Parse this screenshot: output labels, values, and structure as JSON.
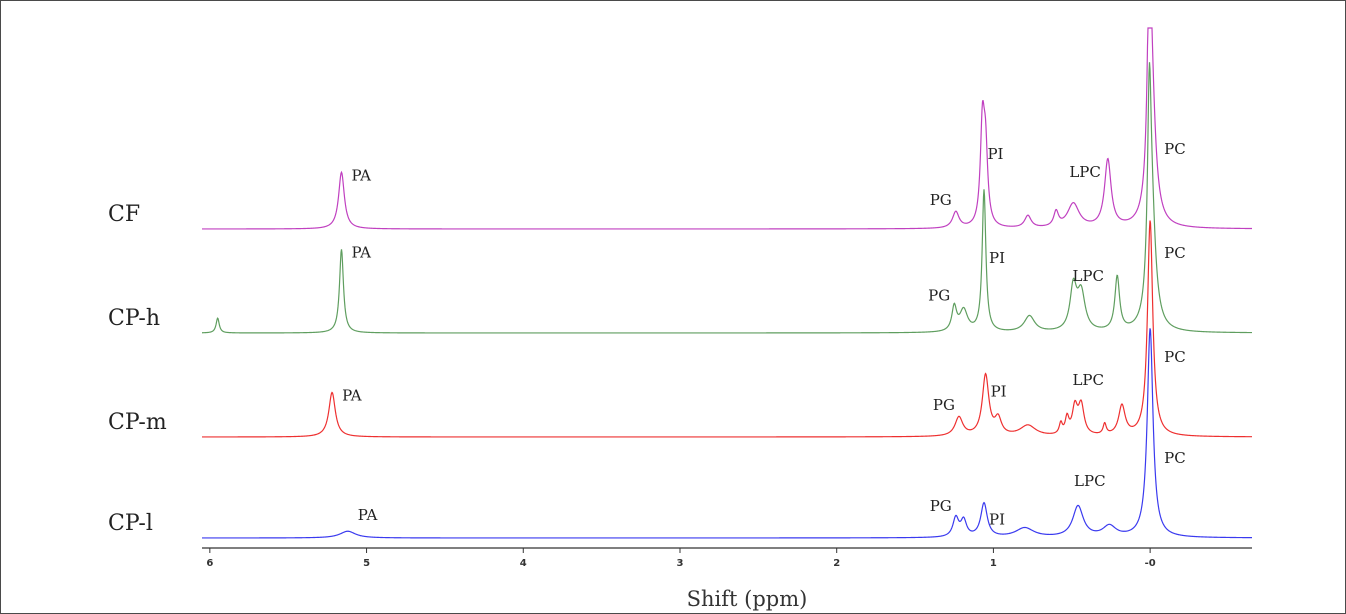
{
  "chart_data": {
    "type": "line",
    "title": "",
    "xlabel": "Shift (ppm)",
    "ylabel": "",
    "xlim": [
      6.05,
      -0.65
    ],
    "x_reversed": true,
    "xticks": [
      {
        "value": 6,
        "label": "6"
      },
      {
        "value": 5,
        "label": "5"
      },
      {
        "value": 4,
        "label": "4"
      },
      {
        "value": 3,
        "label": "3"
      },
      {
        "value": 2,
        "label": "2"
      },
      {
        "value": 1,
        "label": "1"
      },
      {
        "value": 0,
        "label": "-0"
      }
    ],
    "grid": false,
    "series": [
      {
        "name": "CF",
        "color": "#c040c0",
        "peaks": [
          {
            "x": 5.16,
            "height": 0.42,
            "width": 0.022
          },
          {
            "x": 1.24,
            "height": 0.12,
            "width": 0.025
          },
          {
            "x": 1.07,
            "height": 0.73,
            "width": 0.016
          },
          {
            "x": 1.05,
            "height": 0.52,
            "width": 0.016
          },
          {
            "x": 0.78,
            "height": 0.09,
            "width": 0.025
          },
          {
            "x": 0.6,
            "height": 0.11,
            "width": 0.018
          },
          {
            "x": 0.49,
            "height": 0.18,
            "width": 0.045
          },
          {
            "x": 0.27,
            "height": 0.5,
            "width": 0.025
          },
          {
            "x": 0.005,
            "height": 1.45,
            "width": 0.014
          },
          {
            "x": -0.01,
            "height": 0.9,
            "width": 0.03
          }
        ],
        "annotations": [
          {
            "label": "PA",
            "x": 5.16,
            "y": 0.42
          },
          {
            "label": "PG",
            "x": 1.24,
            "y": 0.12
          },
          {
            "label": "PI",
            "x": 1.07,
            "y": 0.73
          },
          {
            "label": "LPC",
            "x": 0.49,
            "y": 0.18
          },
          {
            "label": "PC",
            "x": 0.0,
            "y": 1.45
          }
        ]
      },
      {
        "name": "CP-h",
        "color": "#5f9e5f",
        "peaks": [
          {
            "x": 5.95,
            "height": 0.11,
            "width": 0.012
          },
          {
            "x": 5.16,
            "height": 0.62,
            "width": 0.015
          },
          {
            "x": 1.25,
            "height": 0.18,
            "width": 0.018
          },
          {
            "x": 1.19,
            "height": 0.16,
            "width": 0.03
          },
          {
            "x": 1.06,
            "height": 1.05,
            "width": 0.014
          },
          {
            "x": 0.77,
            "height": 0.12,
            "width": 0.04
          },
          {
            "x": 0.49,
            "height": 0.32,
            "width": 0.025
          },
          {
            "x": 0.44,
            "height": 0.28,
            "width": 0.03
          },
          {
            "x": 0.21,
            "height": 0.4,
            "width": 0.018
          },
          {
            "x": 0.005,
            "height": 1.35,
            "width": 0.014
          },
          {
            "x": -0.01,
            "height": 0.8,
            "width": 0.03
          }
        ],
        "annotations": [
          {
            "label": "PA",
            "x": 5.16,
            "y": 0.62
          },
          {
            "label": "PG",
            "x": 1.25,
            "y": 0.18
          },
          {
            "label": "PI",
            "x": 1.06,
            "y": 1.05
          },
          {
            "label": "LPC",
            "x": 0.47,
            "y": 0.32
          },
          {
            "label": "PC",
            "x": 0.0,
            "y": 1.35
          }
        ]
      },
      {
        "name": "CP-m",
        "color": "#ee3030",
        "peaks": [
          {
            "x": 5.22,
            "height": 0.33,
            "width": 0.025
          },
          {
            "x": 1.22,
            "height": 0.14,
            "width": 0.03
          },
          {
            "x": 1.05,
            "height": 0.45,
            "width": 0.025
          },
          {
            "x": 0.97,
            "height": 0.12,
            "width": 0.025
          },
          {
            "x": 0.78,
            "height": 0.08,
            "width": 0.06
          },
          {
            "x": 0.57,
            "height": 0.08,
            "width": 0.012
          },
          {
            "x": 0.53,
            "height": 0.12,
            "width": 0.014
          },
          {
            "x": 0.48,
            "height": 0.2,
            "width": 0.02
          },
          {
            "x": 0.44,
            "height": 0.22,
            "width": 0.022
          },
          {
            "x": 0.29,
            "height": 0.08,
            "width": 0.012
          },
          {
            "x": 0.18,
            "height": 0.22,
            "width": 0.025
          },
          {
            "x": 0.0,
            "height": 1.6,
            "width": 0.02
          }
        ],
        "annotations": [
          {
            "label": "PA",
            "x": 5.22,
            "y": 0.33
          },
          {
            "label": "PG",
            "x": 1.22,
            "y": 0.14
          },
          {
            "label": "PI",
            "x": 1.05,
            "y": 0.45
          },
          {
            "label": "LPC",
            "x": 0.47,
            "y": 0.22
          },
          {
            "label": "PC",
            "x": 0.0,
            "y": 1.6
          }
        ]
      },
      {
        "name": "CP-l",
        "color": "#3a3aef",
        "peaks": [
          {
            "x": 5.12,
            "height": 0.05,
            "width": 0.06
          },
          {
            "x": 1.24,
            "height": 0.14,
            "width": 0.022
          },
          {
            "x": 1.19,
            "height": 0.12,
            "width": 0.022
          },
          {
            "x": 1.06,
            "height": 0.25,
            "width": 0.025
          },
          {
            "x": 0.8,
            "height": 0.07,
            "width": 0.07
          },
          {
            "x": 0.46,
            "height": 0.23,
            "width": 0.04
          },
          {
            "x": 0.26,
            "height": 0.08,
            "width": 0.05
          },
          {
            "x": 0.0,
            "height": 1.55,
            "width": 0.022
          }
        ],
        "annotations": [
          {
            "label": "PA",
            "x": 5.12,
            "y": 0.05
          },
          {
            "label": "PG",
            "x": 1.24,
            "y": 0.14
          },
          {
            "label": "PI",
            "x": 1.06,
            "y": 0.25
          },
          {
            "label": "LPC",
            "x": 0.46,
            "y": 0.23
          },
          {
            "label": "PC",
            "x": 0.0,
            "y": 1.55
          }
        ]
      }
    ]
  }
}
